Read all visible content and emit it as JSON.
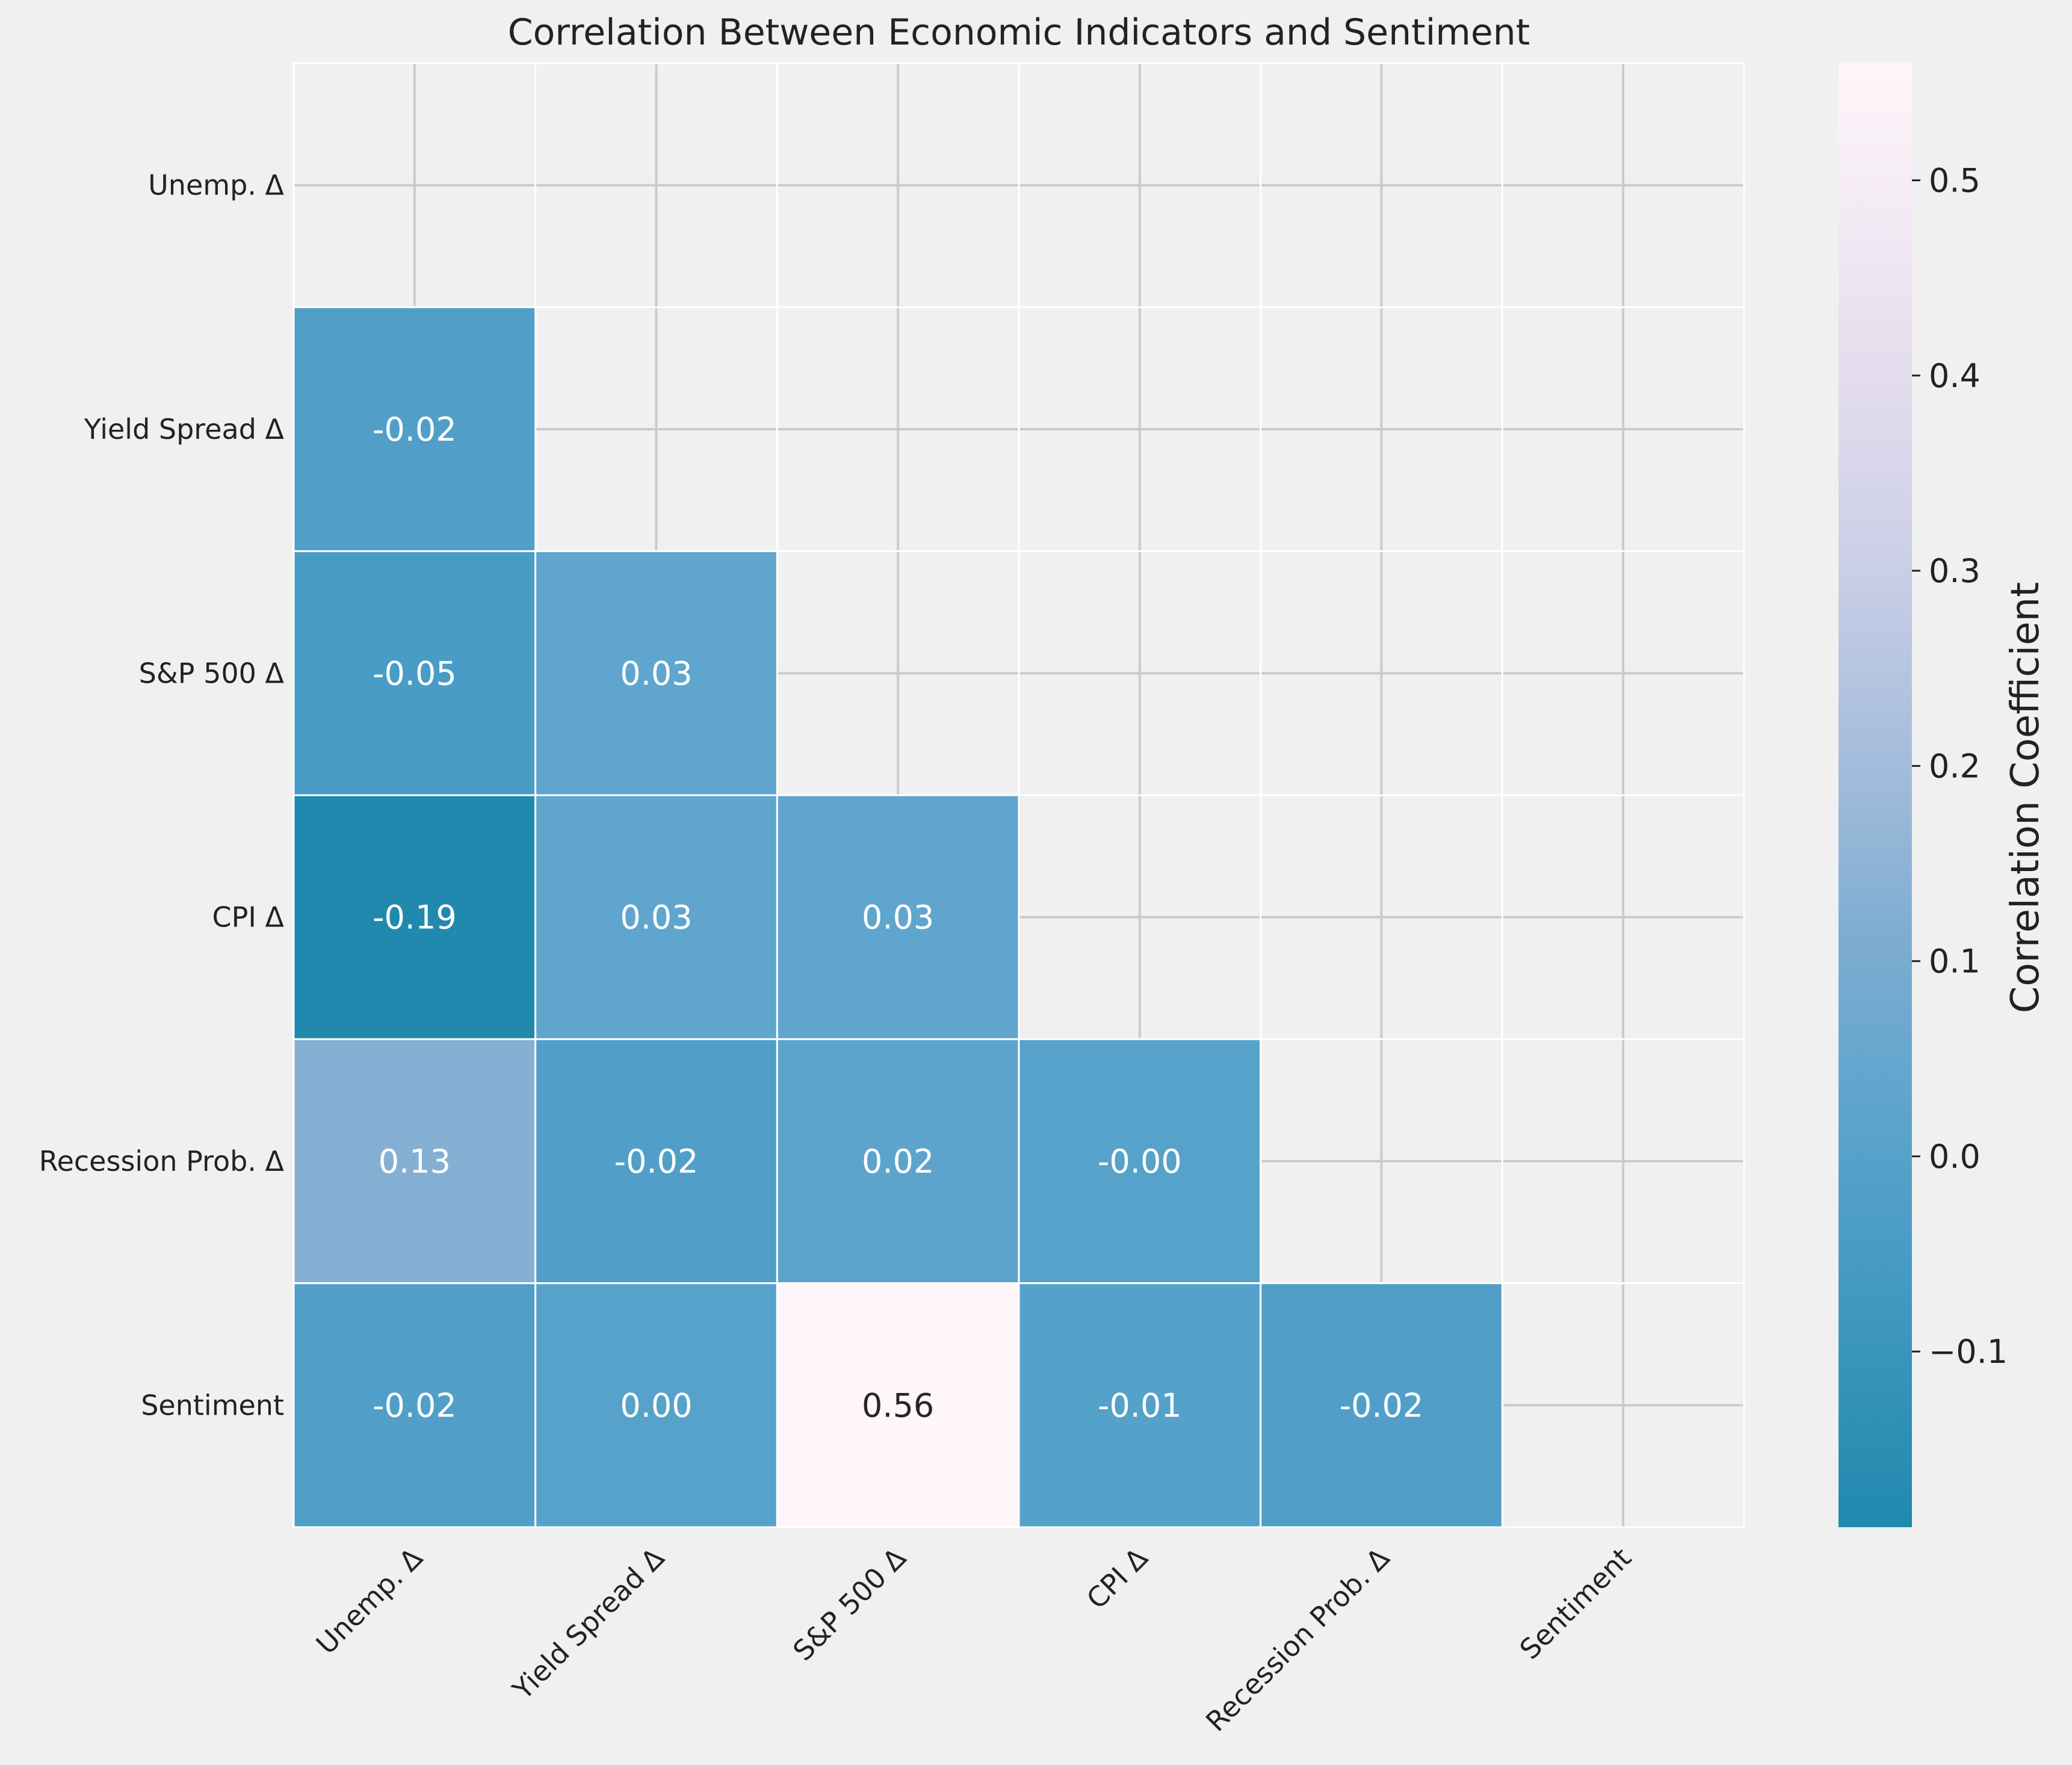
{
  "chart_data": {
    "type": "heatmap",
    "title": "Correlation Between Economic Indicators and Sentiment",
    "xlabels": [
      "Unemp. Δ",
      "Yield Spread Δ",
      "S&P 500 Δ",
      "CPI Δ",
      "Recession Prob. Δ",
      "Sentiment"
    ],
    "ylabels": [
      "Unemp. Δ",
      "Yield Spread Δ",
      "S&P 500 Δ",
      "CPI Δ",
      "Recession Prob. Δ",
      "Sentiment"
    ],
    "mask": "upper-triangle-including-diagonal",
    "values": [
      [
        null,
        null,
        null,
        null,
        null,
        null
      ],
      [
        -0.02,
        null,
        null,
        null,
        null,
        null
      ],
      [
        -0.05,
        0.03,
        null,
        null,
        null,
        null
      ],
      [
        -0.19,
        0.03,
        0.03,
        null,
        null,
        null
      ],
      [
        0.13,
        -0.02,
        0.02,
        -0.0,
        null,
        null
      ],
      [
        -0.02,
        0.0,
        0.56,
        -0.01,
        -0.02,
        null
      ]
    ],
    "cell_labels": [
      [
        null,
        null,
        null,
        null,
        null,
        null
      ],
      [
        "-0.02",
        null,
        null,
        null,
        null,
        null
      ],
      [
        "-0.05",
        "0.03",
        null,
        null,
        null,
        null
      ],
      [
        "-0.19",
        "0.03",
        "0.03",
        null,
        null,
        null
      ],
      [
        "0.13",
        "-0.02",
        "0.02",
        "-0.00",
        null,
        null
      ],
      [
        "-0.02",
        "0.00",
        "0.56",
        "-0.01",
        "-0.02",
        null
      ]
    ],
    "colorbar": {
      "label": "Correlation Coefficient",
      "vmin": -0.19,
      "vmax": 0.56,
      "ticks": [
        -0.1,
        0.0,
        0.1,
        0.2,
        0.3,
        0.4,
        0.5
      ],
      "tick_labels": [
        "−0.1",
        "0.0",
        "0.1",
        "0.2",
        "0.3",
        "0.4",
        "0.5"
      ],
      "colormap": "PuBuGn_r",
      "low_color": "#2089ad",
      "high_color": "#fff6fa"
    },
    "grid": true
  }
}
